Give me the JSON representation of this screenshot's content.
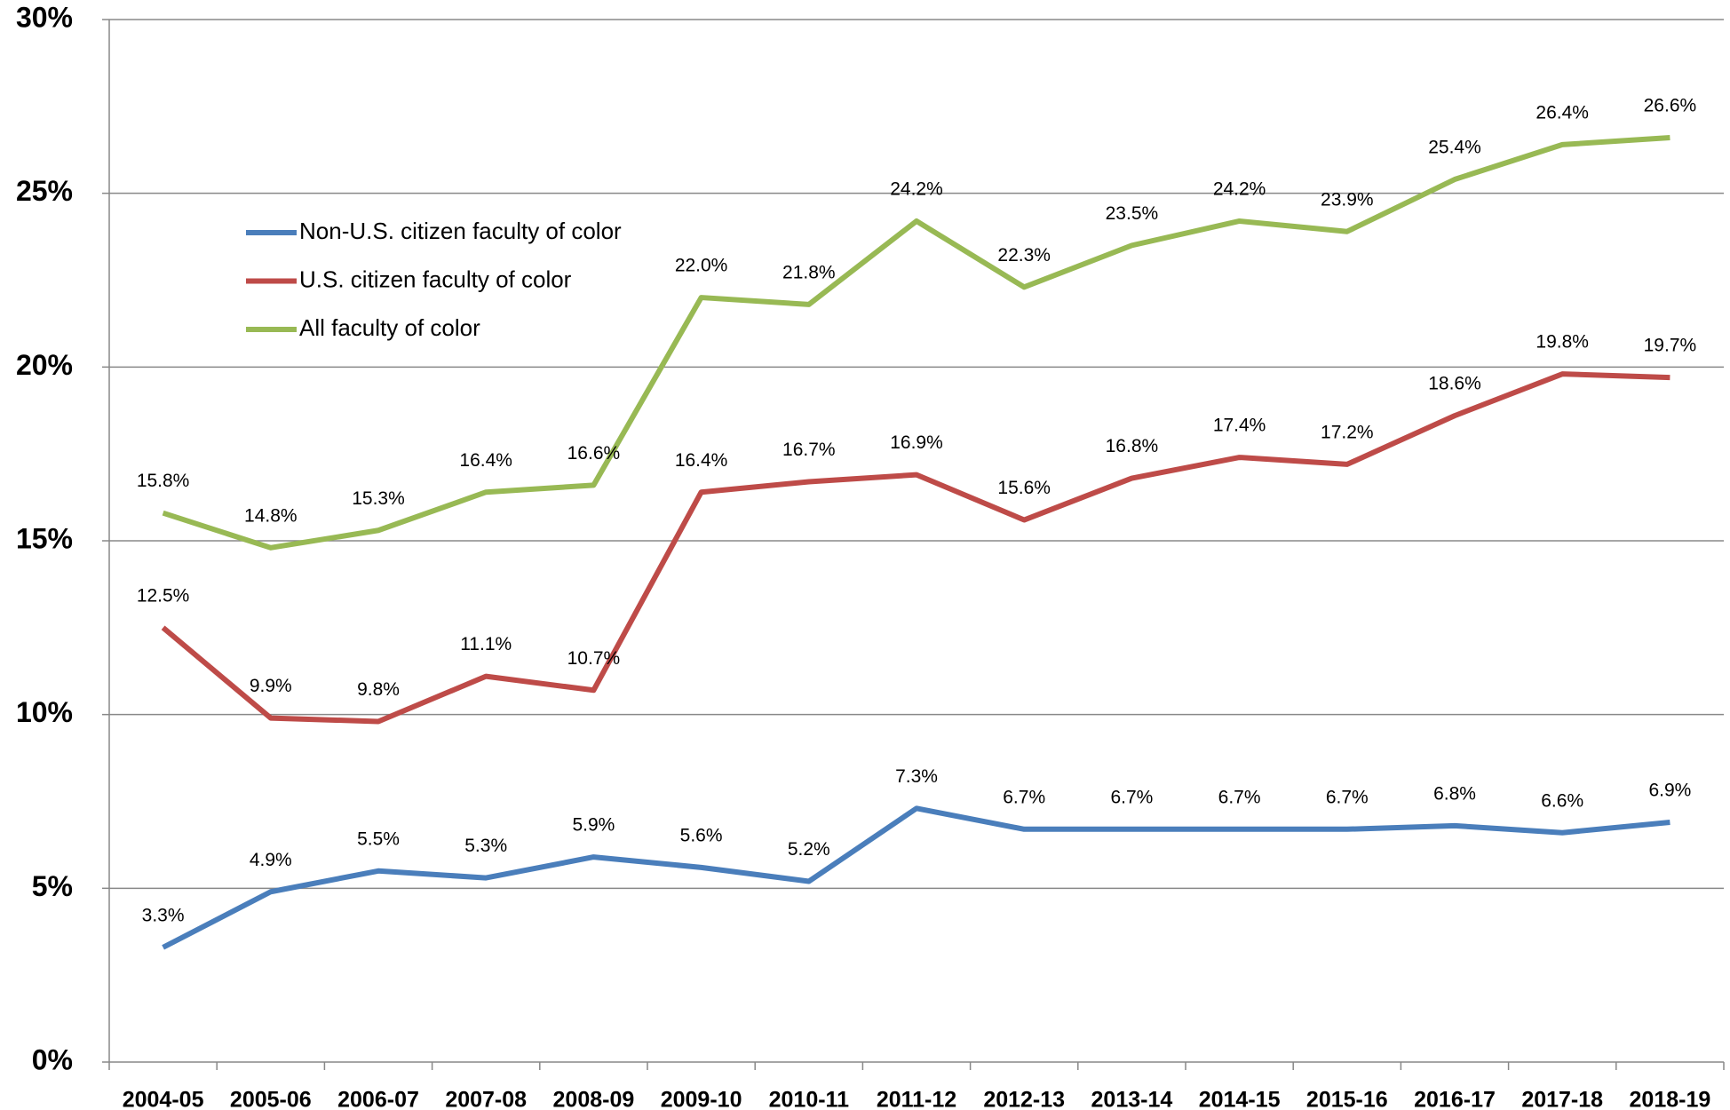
{
  "chart_data": {
    "type": "line",
    "categories": [
      "2004-05",
      "2005-06",
      "2006-07",
      "2007-08",
      "2008-09",
      "2009-10",
      "2010-11",
      "2011-12",
      "2012-13",
      "2013-14",
      "2014-15",
      "2015-16",
      "2016-17",
      "2017-18",
      "2018-19"
    ],
    "series": [
      {
        "name": "Non-U.S. citizen faculty of color",
        "color": "#4a7ebb",
        "values": [
          3.3,
          4.9,
          5.5,
          5.3,
          5.9,
          5.6,
          5.2,
          7.3,
          6.7,
          6.7,
          6.7,
          6.7,
          6.8,
          6.6,
          6.9
        ],
        "value_labels": [
          "3.3%",
          "4.9%",
          "5.5%",
          "5.3%",
          "5.9%",
          "5.6%",
          "5.2%",
          "7.3%",
          "6.7%",
          "6.7%",
          "6.7%",
          "6.7%",
          "6.8%",
          "6.6%",
          "6.9%"
        ]
      },
      {
        "name": "U.S. citizen faculty of color",
        "color": "#be4b48",
        "values": [
          12.5,
          9.9,
          9.8,
          11.1,
          10.7,
          16.4,
          16.7,
          16.9,
          15.6,
          16.8,
          17.4,
          17.2,
          18.6,
          19.8,
          19.7
        ],
        "value_labels": [
          "12.5%",
          "9.9%",
          "9.8%",
          "11.1%",
          "10.7%",
          "16.4%",
          "16.7%",
          "16.9%",
          "15.6%",
          "16.8%",
          "17.4%",
          "17.2%",
          "18.6%",
          "19.8%",
          "19.7%"
        ]
      },
      {
        "name": "All faculty of color",
        "color": "#98b954",
        "values": [
          15.8,
          14.8,
          15.3,
          16.4,
          16.6,
          22.0,
          21.8,
          24.2,
          22.3,
          23.5,
          24.2,
          23.9,
          25.4,
          26.4,
          26.6
        ],
        "value_labels": [
          "15.8%",
          "14.8%",
          "15.3%",
          "16.4%",
          "16.6%",
          "22.0%",
          "21.8%",
          "24.2%",
          "22.3%",
          "23.5%",
          "24.2%",
          "23.9%",
          "25.4%",
          "26.4%",
          "26.6%"
        ]
      }
    ],
    "ylim": [
      0,
      30
    ],
    "yticks": [
      {
        "value": 0,
        "label": "0%"
      },
      {
        "value": 5,
        "label": "5%"
      },
      {
        "value": 10,
        "label": "10%"
      },
      {
        "value": 15,
        "label": "15%"
      },
      {
        "value": 20,
        "label": "20%"
      },
      {
        "value": 25,
        "label": "25%"
      },
      {
        "value": 30,
        "label": "30%"
      }
    ],
    "grid": true,
    "legend": "upper left"
  }
}
